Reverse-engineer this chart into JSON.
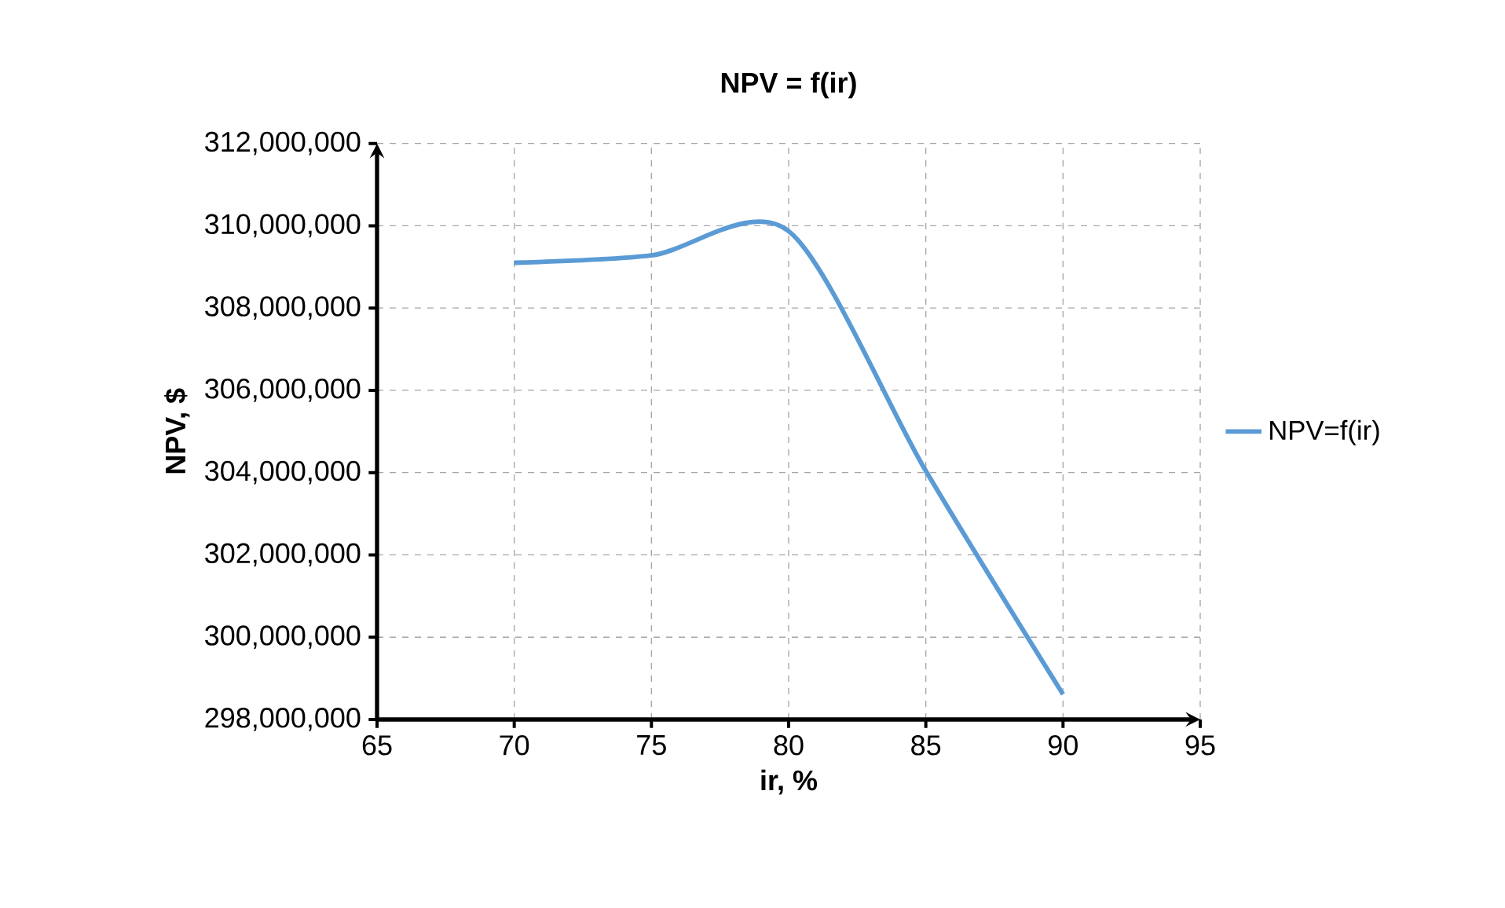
{
  "chart_data": {
    "type": "line",
    "title": "NPV = f(ir)",
    "xlabel": "ir, %",
    "ylabel": "NPV, $",
    "x": [
      70,
      75,
      80,
      85,
      90
    ],
    "series": [
      {
        "name": "NPV=f(ir)",
        "color": "#5b9bd5",
        "values": [
          309100000,
          309280000,
          309870000,
          304040000,
          298610000
        ]
      }
    ],
    "xlim": [
      65,
      95
    ],
    "xticks": [
      65,
      70,
      75,
      80,
      85,
      90,
      95
    ],
    "ylim": [
      298000000,
      312000000
    ],
    "yticks": [
      {
        "value": 298000000,
        "label": "298,000,000"
      },
      {
        "value": 300000000,
        "label": "300,000,000"
      },
      {
        "value": 302000000,
        "label": "302,000,000"
      },
      {
        "value": 304000000,
        "label": "304,000,000"
      },
      {
        "value": 306000000,
        "label": "306,000,000"
      },
      {
        "value": 308000000,
        "label": "308,000,000"
      },
      {
        "value": 310000000,
        "label": "310,000,000"
      },
      {
        "value": 312000000,
        "label": "312,000,000"
      }
    ],
    "grid": true,
    "legend": "right",
    "marker": "none",
    "line_style": "solid"
  }
}
